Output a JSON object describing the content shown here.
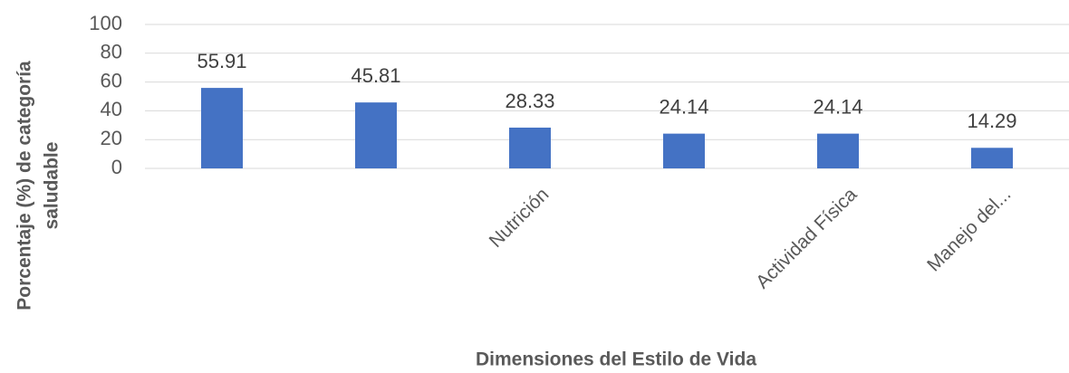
{
  "chart_data": {
    "type": "bar",
    "categories": [
      null,
      null,
      "Nutrición",
      null,
      "Actividad Física",
      "Manejo del..."
    ],
    "values": [
      55.91,
      45.81,
      28.33,
      24.14,
      24.14,
      14.29
    ],
    "color": "#4472c4",
    "ylim": [
      0,
      100
    ],
    "yticks": [
      0,
      20,
      40,
      60,
      80,
      100
    ],
    "grid": true,
    "x_label": "Dimensiones del Estilo de Vida",
    "y_label": [
      "Porcentaje (%) de categoría",
      "saludable"
    ]
  }
}
